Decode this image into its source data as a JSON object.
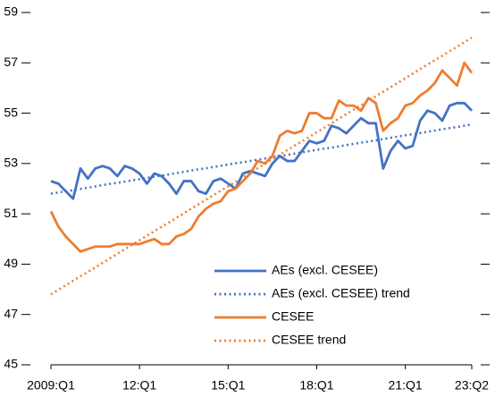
{
  "chart_data": {
    "type": "line",
    "categories": [
      "2009:Q1",
      null,
      null,
      null,
      null,
      null,
      null,
      null,
      null,
      null,
      null,
      null,
      "12:Q1",
      null,
      null,
      null,
      null,
      null,
      null,
      null,
      null,
      null,
      null,
      null,
      "15:Q1",
      null,
      null,
      null,
      null,
      null,
      null,
      null,
      null,
      null,
      null,
      null,
      "18:Q1",
      null,
      null,
      null,
      null,
      null,
      null,
      null,
      null,
      null,
      null,
      null,
      "21:Q1",
      null,
      null,
      null,
      null,
      null,
      null,
      null,
      null,
      "23:Q2"
    ],
    "ylim": [
      45,
      59
    ],
    "yticks": [
      45,
      47,
      49,
      51,
      53,
      55,
      57,
      59
    ],
    "legend_position": "lower right",
    "series": [
      {
        "name": "AEs (excl. CESEE)",
        "color": "#4472c4",
        "linestyle": "solid",
        "values": [
          52.3,
          52.2,
          51.9,
          51.6,
          52.8,
          52.4,
          52.8,
          52.9,
          52.8,
          52.5,
          52.9,
          52.8,
          52.6,
          52.2,
          52.6,
          52.5,
          52.2,
          51.8,
          52.3,
          52.3,
          51.9,
          51.8,
          52.3,
          52.4,
          52.2,
          52.0,
          52.6,
          52.7,
          52.6,
          52.5,
          53.0,
          53.3,
          53.1,
          53.1,
          53.5,
          53.9,
          53.8,
          53.9,
          54.5,
          54.4,
          54.2,
          54.5,
          54.8,
          54.6,
          54.6,
          52.8,
          53.5,
          53.9,
          53.6,
          53.7,
          54.7,
          55.1,
          55.0,
          54.7,
          55.3,
          55.4,
          55.4,
          55.1
        ]
      },
      {
        "name": "AEs (excl. CESEE) trend",
        "color": "#4472c4",
        "linestyle": "dotted",
        "values": [
          51.8,
          51.85,
          51.9,
          51.94,
          51.99,
          52.04,
          52.09,
          52.14,
          52.19,
          52.23,
          52.28,
          52.33,
          52.38,
          52.43,
          52.48,
          52.52,
          52.57,
          52.62,
          52.67,
          52.72,
          52.77,
          52.81,
          52.86,
          52.91,
          52.96,
          53.01,
          53.05,
          53.1,
          53.15,
          53.2,
          53.25,
          53.3,
          53.34,
          53.39,
          53.44,
          53.49,
          53.54,
          53.59,
          53.63,
          53.68,
          53.73,
          53.78,
          53.83,
          53.87,
          53.92,
          53.97,
          54.02,
          54.07,
          54.12,
          54.16,
          54.21,
          54.26,
          54.31,
          54.36,
          54.41,
          54.45,
          54.5,
          54.55
        ]
      },
      {
        "name": "CESEE",
        "color": "#ed7d31",
        "linestyle": "solid",
        "values": [
          51.1,
          50.5,
          50.1,
          49.8,
          49.5,
          49.6,
          49.7,
          49.7,
          49.7,
          49.8,
          49.8,
          49.8,
          49.8,
          49.9,
          50.0,
          49.8,
          49.8,
          50.1,
          50.2,
          50.4,
          50.9,
          51.2,
          51.4,
          51.5,
          51.9,
          52.0,
          52.3,
          52.6,
          53.1,
          53.0,
          53.3,
          54.1,
          54.3,
          54.2,
          54.3,
          55.0,
          55.0,
          54.8,
          54.8,
          55.5,
          55.3,
          55.3,
          55.1,
          55.6,
          55.4,
          54.3,
          54.6,
          54.8,
          55.3,
          55.4,
          55.7,
          55.9,
          56.2,
          56.7,
          56.4,
          56.1,
          57.0,
          56.6
        ]
      },
      {
        "name": "CESEE trend",
        "color": "#ed7d31",
        "linestyle": "dotted",
        "values": [
          47.8,
          47.98,
          48.16,
          48.34,
          48.52,
          48.69,
          48.87,
          49.05,
          49.23,
          49.41,
          49.59,
          49.77,
          49.95,
          50.13,
          50.31,
          50.48,
          50.66,
          50.84,
          51.02,
          51.2,
          51.38,
          51.56,
          51.74,
          51.92,
          52.09,
          52.27,
          52.45,
          52.63,
          52.81,
          52.99,
          53.17,
          53.35,
          53.53,
          53.71,
          53.88,
          54.06,
          54.24,
          54.42,
          54.6,
          54.78,
          54.96,
          55.14,
          55.32,
          55.49,
          55.67,
          55.85,
          56.03,
          56.21,
          56.39,
          56.57,
          56.75,
          56.93,
          57.11,
          57.28,
          57.46,
          57.64,
          57.82,
          58.0
        ]
      }
    ]
  }
}
